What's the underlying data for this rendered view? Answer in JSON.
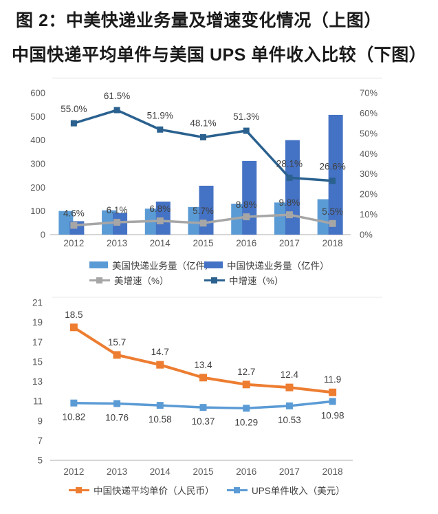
{
  "title": {
    "line1": "图 2：中美快递业务量及增速变化情况（上图）",
    "line2": "中国快递平均单件与美国 UPS 单件收入比较（下图）"
  },
  "colors": {
    "us_volume_bar": "#5B9BD5",
    "cn_volume_bar": "#4472C4",
    "us_growth_line": "#A6A6A6",
    "cn_growth_line": "#2A618F",
    "cn_price_line": "#ED7D31",
    "ups_revenue_line": "#5B9BD5",
    "axis_text": "#595959",
    "data_label_text": "#404040",
    "axis_line": "#C9C9C9",
    "title_text": "#1a1a1a"
  },
  "chart_data": [
    {
      "type": "bar+line",
      "title": "中美快递业务量及增速变化情况",
      "categories": [
        "2012",
        "2013",
        "2014",
        "2015",
        "2016",
        "2017",
        "2018"
      ],
      "left_axis": {
        "min": 0,
        "max": 600,
        "step": 100,
        "ticks": [
          "0",
          "100",
          "200",
          "300",
          "400",
          "500",
          "600"
        ]
      },
      "right_axis": {
        "min": 0,
        "max": 70,
        "step": 10,
        "ticks": [
          "0%",
          "10%",
          "20%",
          "30%",
          "40%",
          "50%",
          "60%",
          "70%"
        ]
      },
      "grid": false,
      "legend_position": "bottom",
      "series": [
        {
          "name": "美国快递业务量（亿件）",
          "type": "bar",
          "axis": "left",
          "color": "#5B9BD5",
          "values": [
            100,
            103,
            110,
            117,
            131,
            136,
            150
          ]
        },
        {
          "name": "中国快递业务量（亿件）",
          "type": "bar",
          "axis": "left",
          "color": "#4472C4",
          "values": [
            57,
            92,
            140,
            207,
            312,
            400,
            507
          ]
        },
        {
          "name": "美增速（%）",
          "type": "line",
          "axis": "right",
          "color": "#A6A6A6",
          "values": [
            4.6,
            6.1,
            6.8,
            5.7,
            8.8,
            9.8,
            5.5
          ],
          "labels": [
            "4.6%",
            "6.1%",
            "6.8%",
            "5.7%",
            "8.8%",
            "9.8%",
            "5.5%"
          ]
        },
        {
          "name": "中增速（%）",
          "type": "line",
          "axis": "right",
          "color": "#2A618F",
          "values": [
            55.0,
            61.5,
            51.9,
            48.1,
            51.3,
            28.1,
            26.6
          ],
          "labels": [
            "55.0%",
            "61.5%",
            "51.9%",
            "48.1%",
            "51.3%",
            "28.1%",
            "26.6%"
          ]
        }
      ]
    },
    {
      "type": "line",
      "title": "中国快递平均单件与美国UPS单件收入比较",
      "categories": [
        "2012",
        "2013",
        "2014",
        "2015",
        "2016",
        "2017",
        "2018"
      ],
      "y_axis": {
        "min": 5,
        "max": 21,
        "step": 2,
        "ticks": [
          "5",
          "7",
          "9",
          "11",
          "13",
          "15",
          "17",
          "19",
          "21"
        ]
      },
      "grid": false,
      "legend_position": "bottom",
      "series": [
        {
          "name": "中国快递平均单价（人民币）",
          "color": "#ED7D31",
          "label_position": "above",
          "values": [
            18.5,
            15.7,
            14.7,
            13.4,
            12.7,
            12.4,
            11.9
          ],
          "labels": [
            "18.5",
            "15.7",
            "14.7",
            "13.4",
            "12.7",
            "12.4",
            "11.9"
          ]
        },
        {
          "name": "UPS单件收入（美元）",
          "color": "#5B9BD5",
          "label_position": "below",
          "values": [
            10.82,
            10.76,
            10.58,
            10.37,
            10.29,
            10.53,
            10.98
          ],
          "labels": [
            "10.82",
            "10.76",
            "10.58",
            "10.37",
            "10.29",
            "10.53",
            "10.98"
          ]
        }
      ]
    }
  ],
  "legend_top": {
    "row1": [
      {
        "label": "美国快递业务量（亿件）"
      },
      {
        "label": "中国快递业务量（亿件）"
      }
    ],
    "row2": [
      {
        "label": "美增速（%）"
      },
      {
        "label": "中增速（%）"
      }
    ]
  },
  "legend_bottom": [
    {
      "label": "中国快递平均单价（人民币）"
    },
    {
      "label": "UPS单件收入（美元）"
    }
  ]
}
